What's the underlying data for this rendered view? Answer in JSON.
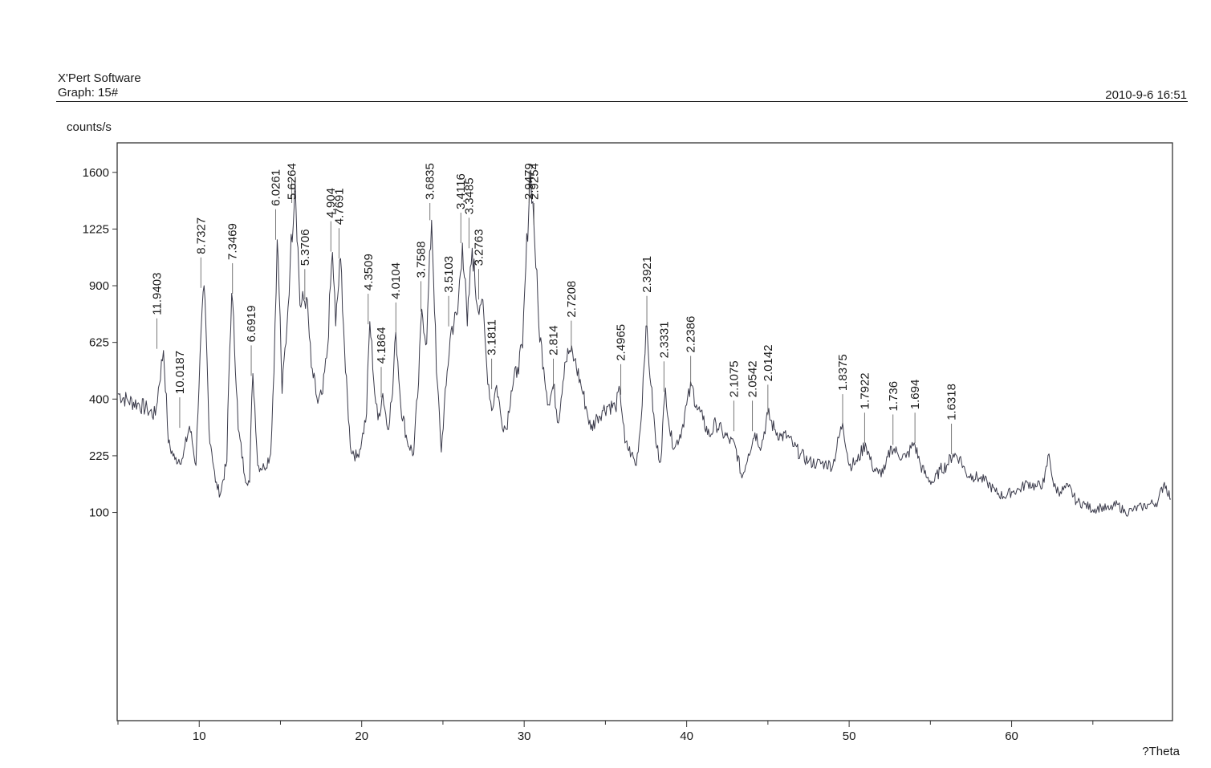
{
  "header": {
    "app_title": "X'Pert Software",
    "graph_label": "Graph: 15#",
    "timestamp": "2010-9-6 16:51"
  },
  "chart_data": {
    "type": "line",
    "title": "",
    "xlabel": "?Theta",
    "ylabel": "counts/s",
    "xlim": [
      4.95,
      69.9
    ],
    "ylim": [
      -70,
      1815
    ],
    "x_ticks": [
      10,
      20,
      30,
      40,
      50,
      60
    ],
    "y_ticks": [
      100,
      225,
      400,
      625,
      900,
      1225,
      1600
    ],
    "y_scale": "sqrt",
    "grid": false,
    "series": [
      {
        "color": "#3a3a4a",
        "points": [
          [
            5,
            420
          ],
          [
            5.6,
            395
          ],
          [
            6.2,
            385
          ],
          [
            6.8,
            365
          ],
          [
            7.3,
            345
          ],
          [
            7.8,
            590
          ],
          [
            8.1,
            260
          ],
          [
            8.5,
            215
          ],
          [
            9.0,
            220
          ],
          [
            9.4,
            310
          ],
          [
            9.8,
            200
          ],
          [
            10.3,
            900
          ],
          [
            10.6,
            300
          ],
          [
            11.0,
            160
          ],
          [
            11.3,
            135
          ],
          [
            11.7,
            210
          ],
          [
            12.0,
            860
          ],
          [
            12.4,
            300
          ],
          [
            12.8,
            175
          ],
          [
            13.1,
            160
          ],
          [
            13.3,
            495
          ],
          [
            13.6,
            200
          ],
          [
            14.0,
            195
          ],
          [
            14.4,
            230
          ],
          [
            14.6,
            500
          ],
          [
            14.8,
            1160
          ],
          [
            15.1,
            420
          ],
          [
            15.4,
            700
          ],
          [
            15.6,
            1020
          ],
          [
            15.9,
            1540
          ],
          [
            16.2,
            800
          ],
          [
            16.6,
            840
          ],
          [
            16.9,
            520
          ],
          [
            17.3,
            385
          ],
          [
            17.6,
            420
          ],
          [
            17.9,
            600
          ],
          [
            18.2,
            1085
          ],
          [
            18.4,
            700
          ],
          [
            18.7,
            1050
          ],
          [
            19.0,
            500
          ],
          [
            19.3,
            250
          ],
          [
            19.7,
            220
          ],
          [
            20.0,
            265
          ],
          [
            20.3,
            350
          ],
          [
            20.5,
            720
          ],
          [
            20.8,
            420
          ],
          [
            21.0,
            330
          ],
          [
            21.3,
            420
          ],
          [
            21.6,
            300
          ],
          [
            21.9,
            420
          ],
          [
            22.1,
            670
          ],
          [
            22.4,
            380
          ],
          [
            22.8,
            265
          ],
          [
            23.2,
            230
          ],
          [
            23.5,
            460
          ],
          [
            23.7,
            780
          ],
          [
            24.0,
            620
          ],
          [
            24.3,
            1280
          ],
          [
            24.6,
            500
          ],
          [
            24.9,
            235
          ],
          [
            25.2,
            450
          ],
          [
            25.5,
            680
          ],
          [
            25.9,
            760
          ],
          [
            26.2,
            1140
          ],
          [
            26.5,
            700
          ],
          [
            26.8,
            1110
          ],
          [
            27.1,
            800
          ],
          [
            27.4,
            830
          ],
          [
            27.7,
            520
          ],
          [
            28.0,
            360
          ],
          [
            28.3,
            450
          ],
          [
            28.6,
            330
          ],
          [
            28.9,
            300
          ],
          [
            29.2,
            430
          ],
          [
            29.6,
            520
          ],
          [
            29.9,
            600
          ],
          [
            30.1,
            1000
          ],
          [
            30.4,
            1615
          ],
          [
            30.6,
            1250
          ],
          [
            30.9,
            700
          ],
          [
            31.2,
            520
          ],
          [
            31.5,
            380
          ],
          [
            31.8,
            450
          ],
          [
            32.1,
            320
          ],
          [
            32.5,
            540
          ],
          [
            32.8,
            590
          ],
          [
            33.1,
            550
          ],
          [
            33.5,
            450
          ],
          [
            33.8,
            375
          ],
          [
            34.1,
            300
          ],
          [
            34.5,
            340
          ],
          [
            34.8,
            360
          ],
          [
            35.2,
            380
          ],
          [
            35.6,
            370
          ],
          [
            35.9,
            430
          ],
          [
            36.2,
            260
          ],
          [
            36.6,
            230
          ],
          [
            36.9,
            200
          ],
          [
            37.2,
            330
          ],
          [
            37.5,
            700
          ],
          [
            37.8,
            450
          ],
          [
            38.1,
            260
          ],
          [
            38.4,
            210
          ],
          [
            38.7,
            440
          ],
          [
            39.0,
            280
          ],
          [
            39.3,
            250
          ],
          [
            39.7,
            300
          ],
          [
            40.0,
            380
          ],
          [
            40.3,
            450
          ],
          [
            40.6,
            380
          ],
          [
            41.0,
            330
          ],
          [
            41.4,
            280
          ],
          [
            41.8,
            320
          ],
          [
            42.2,
            290
          ],
          [
            42.6,
            270
          ],
          [
            43.0,
            250
          ],
          [
            43.4,
            170
          ],
          [
            43.8,
            230
          ],
          [
            44.2,
            290
          ],
          [
            44.6,
            250
          ],
          [
            45.0,
            350
          ],
          [
            45.4,
            300
          ],
          [
            45.8,
            280
          ],
          [
            46.2,
            280
          ],
          [
            46.6,
            250
          ],
          [
            47.0,
            230
          ],
          [
            47.5,
            210
          ],
          [
            48.0,
            205
          ],
          [
            48.5,
            205
          ],
          [
            49.0,
            200
          ],
          [
            49.6,
            320
          ],
          [
            50.0,
            200
          ],
          [
            50.5,
            210
          ],
          [
            51.0,
            260
          ],
          [
            51.4,
            200
          ],
          [
            51.8,
            180
          ],
          [
            52.2,
            190
          ],
          [
            52.6,
            250
          ],
          [
            53.0,
            230
          ],
          [
            53.5,
            220
          ],
          [
            54.0,
            260
          ],
          [
            54.4,
            200
          ],
          [
            54.8,
            170
          ],
          [
            55.2,
            160
          ],
          [
            55.6,
            190
          ],
          [
            56.0,
            200
          ],
          [
            56.4,
            230
          ],
          [
            56.8,
            220
          ],
          [
            57.2,
            180
          ],
          [
            57.6,
            175
          ],
          [
            58.0,
            170
          ],
          [
            58.5,
            160
          ],
          [
            59.0,
            140
          ],
          [
            59.5,
            130
          ],
          [
            60.0,
            140
          ],
          [
            60.5,
            145
          ],
          [
            61.0,
            160
          ],
          [
            61.5,
            150
          ],
          [
            62.0,
            160
          ],
          [
            62.3,
            230
          ],
          [
            62.6,
            150
          ],
          [
            63.0,
            140
          ],
          [
            63.5,
            150
          ],
          [
            64.0,
            120
          ],
          [
            64.5,
            115
          ],
          [
            65.0,
            105
          ],
          [
            65.5,
            110
          ],
          [
            66.0,
            105
          ],
          [
            66.5,
            115
          ],
          [
            67.0,
            100
          ],
          [
            67.5,
            105
          ],
          [
            68.0,
            110
          ],
          [
            68.5,
            115
          ],
          [
            69.0,
            120
          ],
          [
            69.4,
            160
          ],
          [
            69.8,
            125
          ]
        ]
      }
    ],
    "peak_labels": [
      {
        "label": "11.9403",
        "x": 7.4,
        "y": 590
      },
      {
        "label": "10.0187",
        "x": 8.8,
        "y": 300
      },
      {
        "label": "8.7327",
        "x": 10.1,
        "y": 880
      },
      {
        "label": "7.3469",
        "x": 12.05,
        "y": 850
      },
      {
        "label": "6.6919",
        "x": 13.2,
        "y": 480
      },
      {
        "label": "6.0261",
        "x": 14.7,
        "y": 1150
      },
      {
        "label": "5.6264",
        "x": 15.7,
        "y": 1540
      },
      {
        "label": "5.3706",
        "x": 16.5,
        "y": 820
      },
      {
        "label": "4.904",
        "x": 18.1,
        "y": 1080
      },
      {
        "label": "4.7691",
        "x": 18.6,
        "y": 1040
      },
      {
        "label": "4.3509",
        "x": 20.4,
        "y": 700
      },
      {
        "label": "4.1864",
        "x": 21.2,
        "y": 400
      },
      {
        "label": "4.0104",
        "x": 22.1,
        "y": 660
      },
      {
        "label": "3.7588",
        "x": 23.65,
        "y": 760
      },
      {
        "label": "3.6835",
        "x": 24.2,
        "y": 1270
      },
      {
        "label": "3.5103",
        "x": 25.35,
        "y": 690
      },
      {
        "label": "3.4116",
        "x": 26.1,
        "y": 1130
      },
      {
        "label": "3.3485",
        "x": 26.6,
        "y": 1100
      },
      {
        "label": "3.2763",
        "x": 27.2,
        "y": 820
      },
      {
        "label": "3.1811",
        "x": 28.0,
        "y": 430
      },
      {
        "label": "2.9479",
        "x": 30.3,
        "y": 1600
      },
      {
        "label": "2.9254",
        "x": 30.6,
        "y": 1240
      },
      {
        "label": "2.814",
        "x": 31.8,
        "y": 430
      },
      {
        "label": "2.7208",
        "x": 32.9,
        "y": 580
      },
      {
        "label": "2.4965",
        "x": 35.95,
        "y": 410
      },
      {
        "label": "2.3921",
        "x": 37.55,
        "y": 690
      },
      {
        "label": "2.3331",
        "x": 38.6,
        "y": 420
      },
      {
        "label": "2.2386",
        "x": 40.25,
        "y": 440
      },
      {
        "label": "2.1075",
        "x": 42.9,
        "y": 290
      },
      {
        "label": "2.0542",
        "x": 44.05,
        "y": 290
      },
      {
        "label": "2.0142",
        "x": 45.0,
        "y": 340
      },
      {
        "label": "1.8375",
        "x": 49.6,
        "y": 310
      },
      {
        "label": "1.7922",
        "x": 50.95,
        "y": 255
      },
      {
        "label": "1.736",
        "x": 52.7,
        "y": 250
      },
      {
        "label": "1.694",
        "x": 54.05,
        "y": 255
      },
      {
        "label": "1.6318",
        "x": 56.3,
        "y": 225
      }
    ]
  }
}
